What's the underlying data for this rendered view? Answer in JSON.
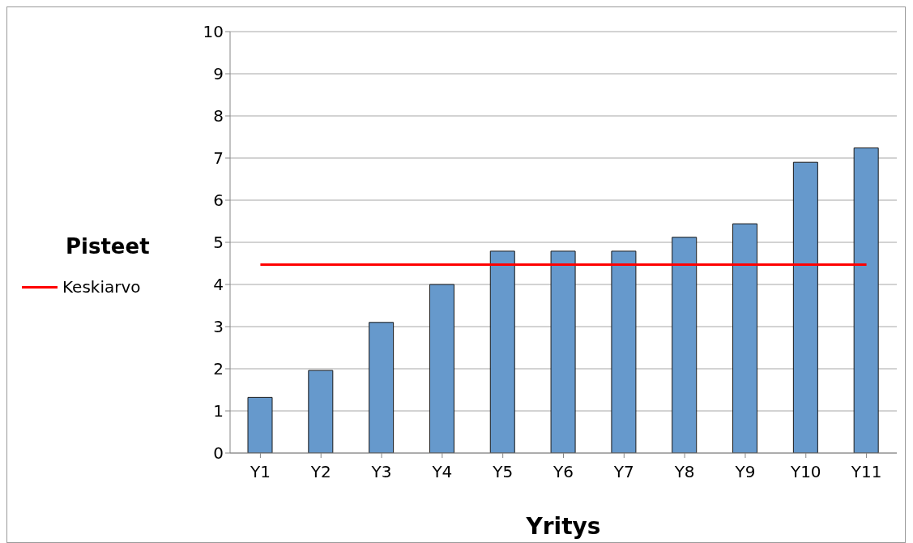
{
  "chart_data": {
    "type": "bar",
    "xlabel": "Yritys",
    "ylabel": "Pisteet",
    "categories": [
      "Y1",
      "Y2",
      "Y3",
      "Y4",
      "Y5",
      "Y6",
      "Y7",
      "Y8",
      "Y9",
      "Y10",
      "Y11"
    ],
    "series": [
      {
        "color": "#6699cc",
        "values": [
          1.32,
          1.96,
          3.1,
          4.0,
          4.79,
          4.79,
          4.79,
          5.12,
          5.44,
          6.9,
          7.24
        ]
      },
      {
        "type": "line",
        "name": "Keskiarvo",
        "color": "#ff0000",
        "values": [
          4.47,
          4.47,
          4.47,
          4.47,
          4.47,
          4.47,
          4.47,
          4.47,
          4.47,
          4.47,
          4.47
        ]
      }
    ],
    "ylim": [
      0,
      10
    ],
    "yticks": [
      0,
      1,
      2,
      3,
      4,
      5,
      6,
      7,
      8,
      9,
      10
    ],
    "grid": "y",
    "legend": "left",
    "marker": "none"
  }
}
